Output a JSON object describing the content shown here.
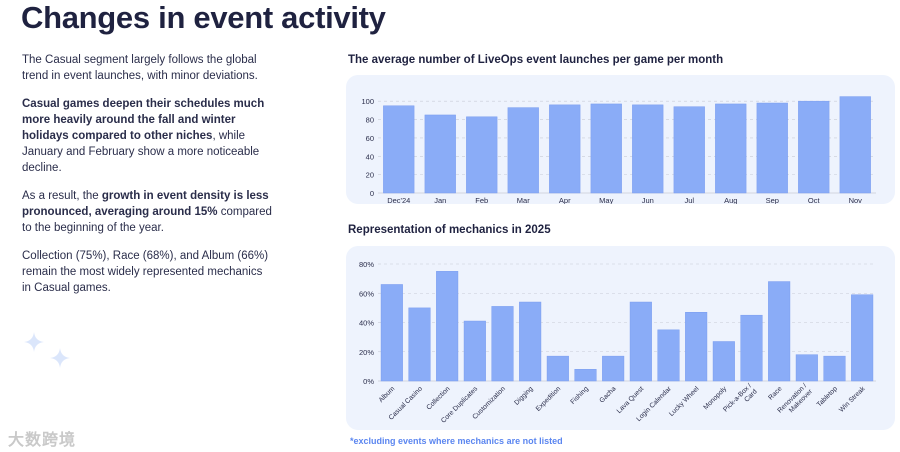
{
  "page": {
    "title": "Changes in event activity",
    "p1": "The Casual segment largely follows the global trend in event launches, with minor deviations.",
    "p2_bold": "Casual games deepen their schedules much more heavily around the fall and winter holidays compared to other niches",
    "p2_rest": ", while January and February show a more noticeable decline.",
    "p3_pre": "As a result, the ",
    "p3_bold": "growth in event density is less pronounced, averaging around 15%",
    "p3_rest": " compared to the beginning of the year.",
    "p4": "Collection (75%), Race (68%), and Album (66%) remain the most widely represented mechanics in Casual games.",
    "footnote": "*excluding events where mechanics are not listed",
    "watermark": "大数跨境"
  },
  "colors": {
    "bar": "#8aacf7",
    "bar_stroke": "#7a9cef",
    "panel": "#eef3fd",
    "grid": "#c8cbd6",
    "accent": "#5b86f0"
  },
  "chart_data": [
    {
      "type": "bar",
      "title": "The average number of LiveOps event launches per game per month",
      "categories": [
        "Dec'24",
        "Jan",
        "Feb",
        "Mar",
        "Apr",
        "May",
        "Jun",
        "Jul",
        "Aug",
        "Sep",
        "Oct",
        "Nov"
      ],
      "values": [
        95,
        85,
        83,
        93,
        96,
        97,
        96,
        94,
        97,
        98,
        100,
        105
      ],
      "yticks": [
        "0",
        "20",
        "40",
        "60",
        "80",
        "100"
      ],
      "ylim": [
        0,
        110
      ],
      "xlabel": "",
      "ylabel": ""
    },
    {
      "type": "bar",
      "title": "Representation of mechanics in 2025",
      "categories": [
        "Album",
        "Casual Casino",
        "Collection",
        "Core Duplicates",
        "Customization",
        "Digging",
        "Expedition",
        "Fishing",
        "Gacha",
        "Lava Quest",
        "Login Calendar",
        "Lucky Wheel",
        "Monopoly",
        "Pick-a-Box / Card",
        "Race",
        "Renovation / Makeover",
        "Tabletop",
        "Win Streak"
      ],
      "values": [
        66,
        50,
        75,
        41,
        51,
        54,
        17,
        8,
        17,
        54,
        35,
        47,
        27,
        45,
        68,
        18,
        17,
        59
      ],
      "yticks": [
        "0%",
        "20%",
        "40%",
        "60%",
        "80%"
      ],
      "ylim": [
        0,
        80
      ],
      "xlabel": "",
      "ylabel": ""
    }
  ]
}
